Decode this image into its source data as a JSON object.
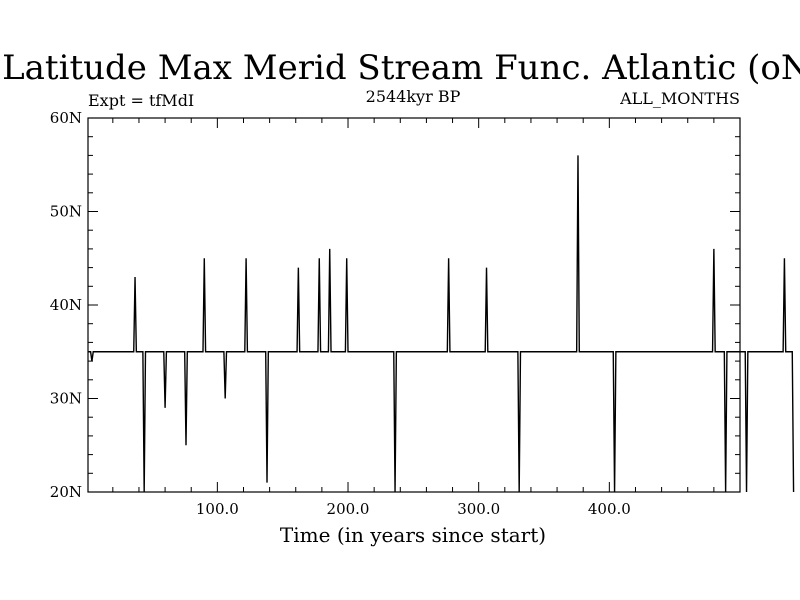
{
  "chart_data": {
    "type": "line",
    "title": "Latitude Max Merid Stream Func. Atlantic (oN)",
    "subtitle_left": "Expt = tfMdI",
    "subtitle_center": "2544kyr BP",
    "subtitle_right": "ALL_MONTHS",
    "xlabel": "Time (in years since start)",
    "ylabel": "",
    "xlim": [
      1,
      500
    ],
    "ylim": [
      20,
      60
    ],
    "x_ticks": [
      100,
      200,
      300,
      400
    ],
    "x_tick_labels": [
      "100.0",
      "200.0",
      "300.0",
      "400.0"
    ],
    "y_ticks": [
      20,
      30,
      40,
      50,
      60
    ],
    "y_tick_labels": [
      "20N",
      "30N",
      "40N",
      "50N",
      "60N"
    ],
    "grid": false,
    "baseline": 35,
    "x_start": 1,
    "series": [
      {
        "name": "",
        "color": "#000000",
        "values": [
          35,
          35,
          35,
          34,
          35,
          35,
          35,
          35,
          35,
          35,
          35,
          35,
          35,
          35,
          35,
          35,
          35,
          35,
          35,
          35,
          35,
          35,
          35,
          35,
          35,
          35,
          35,
          35,
          35,
          35,
          35,
          35,
          35,
          35,
          35,
          35,
          43,
          35,
          35,
          35,
          35,
          35,
          35,
          20,
          35,
          35,
          35,
          35,
          35,
          35,
          35,
          35,
          35,
          35,
          35,
          35,
          35,
          35,
          35,
          29,
          35,
          35,
          35,
          35,
          35,
          35,
          35,
          35,
          35,
          35,
          35,
          35,
          35,
          35,
          35,
          25,
          35,
          35,
          35,
          35,
          35,
          35,
          35,
          35,
          35,
          35,
          35,
          35,
          35,
          45,
          35,
          35,
          35,
          35,
          35,
          35,
          35,
          35,
          35,
          35,
          35,
          35,
          35,
          35,
          35,
          30,
          35,
          35,
          35,
          35,
          35,
          35,
          35,
          35,
          35,
          35,
          35,
          35,
          35,
          35,
          35,
          45,
          35,
          35,
          35,
          35,
          35,
          35,
          35,
          35,
          35,
          35,
          35,
          35,
          35,
          35,
          35,
          21,
          35,
          35,
          35,
          35,
          35,
          35,
          35,
          35,
          35,
          35,
          35,
          35,
          35,
          35,
          35,
          35,
          35,
          35,
          35,
          35,
          35,
          35,
          35,
          44,
          35,
          35,
          35,
          35,
          35,
          35,
          35,
          35,
          35,
          35,
          35,
          35,
          35,
          35,
          35,
          45,
          35,
          35,
          35,
          35,
          35,
          35,
          35,
          46,
          35,
          35,
          35,
          35,
          35,
          35,
          35,
          35,
          35,
          35,
          35,
          35,
          45,
          35,
          35,
          35,
          35,
          35,
          35,
          35,
          35,
          35,
          35,
          35,
          35,
          35,
          35,
          35,
          35,
          35,
          35,
          35,
          35,
          35,
          35,
          35,
          35,
          35,
          35,
          35,
          35,
          35,
          35,
          35,
          35,
          35,
          35,
          35,
          35,
          20,
          35,
          35,
          35,
          35,
          35,
          35,
          35,
          35,
          35,
          35,
          35,
          35,
          35,
          35,
          35,
          35,
          35,
          35,
          35,
          35,
          35,
          35,
          35,
          35,
          35,
          35,
          35,
          35,
          35,
          35,
          35,
          35,
          35,
          35,
          35,
          35,
          35,
          35,
          35,
          35,
          45,
          35,
          35,
          35,
          35,
          35,
          35,
          35,
          35,
          35,
          35,
          35,
          35,
          35,
          35,
          35,
          35,
          35,
          35,
          35,
          35,
          35,
          35,
          35,
          35,
          35,
          35,
          35,
          35,
          44,
          35,
          35,
          35,
          35,
          35,
          35,
          35,
          35,
          35,
          35,
          35,
          35,
          35,
          35,
          35,
          35,
          35,
          35,
          35,
          35,
          35,
          35,
          35,
          35,
          20,
          35,
          35,
          35,
          35,
          35,
          35,
          35,
          35,
          35,
          35,
          35,
          35,
          35,
          35,
          35,
          35,
          35,
          35,
          35,
          35,
          35,
          35,
          35,
          35,
          35,
          35,
          35,
          35,
          35,
          35,
          35,
          35,
          35,
          35,
          35,
          35,
          35,
          35,
          35,
          35,
          35,
          35,
          35,
          35,
          56,
          35,
          35,
          35,
          35,
          35,
          35,
          35,
          35,
          35,
          35,
          35,
          35,
          35,
          35,
          35,
          35,
          35,
          35,
          35,
          35,
          35,
          35,
          35,
          35,
          35,
          35,
          35,
          20,
          35,
          35,
          35,
          35,
          35,
          35,
          35,
          35,
          35,
          35,
          35,
          35,
          35,
          35,
          35,
          35,
          35,
          35,
          35,
          35,
          35,
          35,
          35,
          35,
          35,
          35,
          35,
          35,
          35,
          35,
          35,
          35,
          35,
          35,
          35,
          35,
          35,
          35,
          35,
          35,
          35,
          35,
          35,
          35,
          35,
          35,
          35,
          35,
          35,
          35,
          35,
          35,
          35,
          35,
          35,
          35,
          35,
          35,
          35,
          35,
          35,
          35,
          35,
          35,
          35,
          35,
          35,
          35,
          35,
          35,
          35,
          35,
          35,
          35,
          35,
          46,
          35,
          35,
          35,
          35,
          35,
          35,
          35,
          35,
          20,
          35,
          35,
          35,
          35,
          35,
          35,
          35,
          35,
          35,
          35,
          35,
          35,
          35,
          35,
          35,
          20,
          35,
          35,
          35,
          35,
          35,
          35,
          35,
          35,
          35,
          35,
          35,
          35,
          35,
          35,
          35,
          35,
          35,
          35,
          35,
          35,
          35,
          35,
          35,
          35,
          35,
          35,
          35,
          35,
          45,
          35,
          35,
          35,
          35,
          35,
          35,
          20
        ]
      }
    ]
  }
}
